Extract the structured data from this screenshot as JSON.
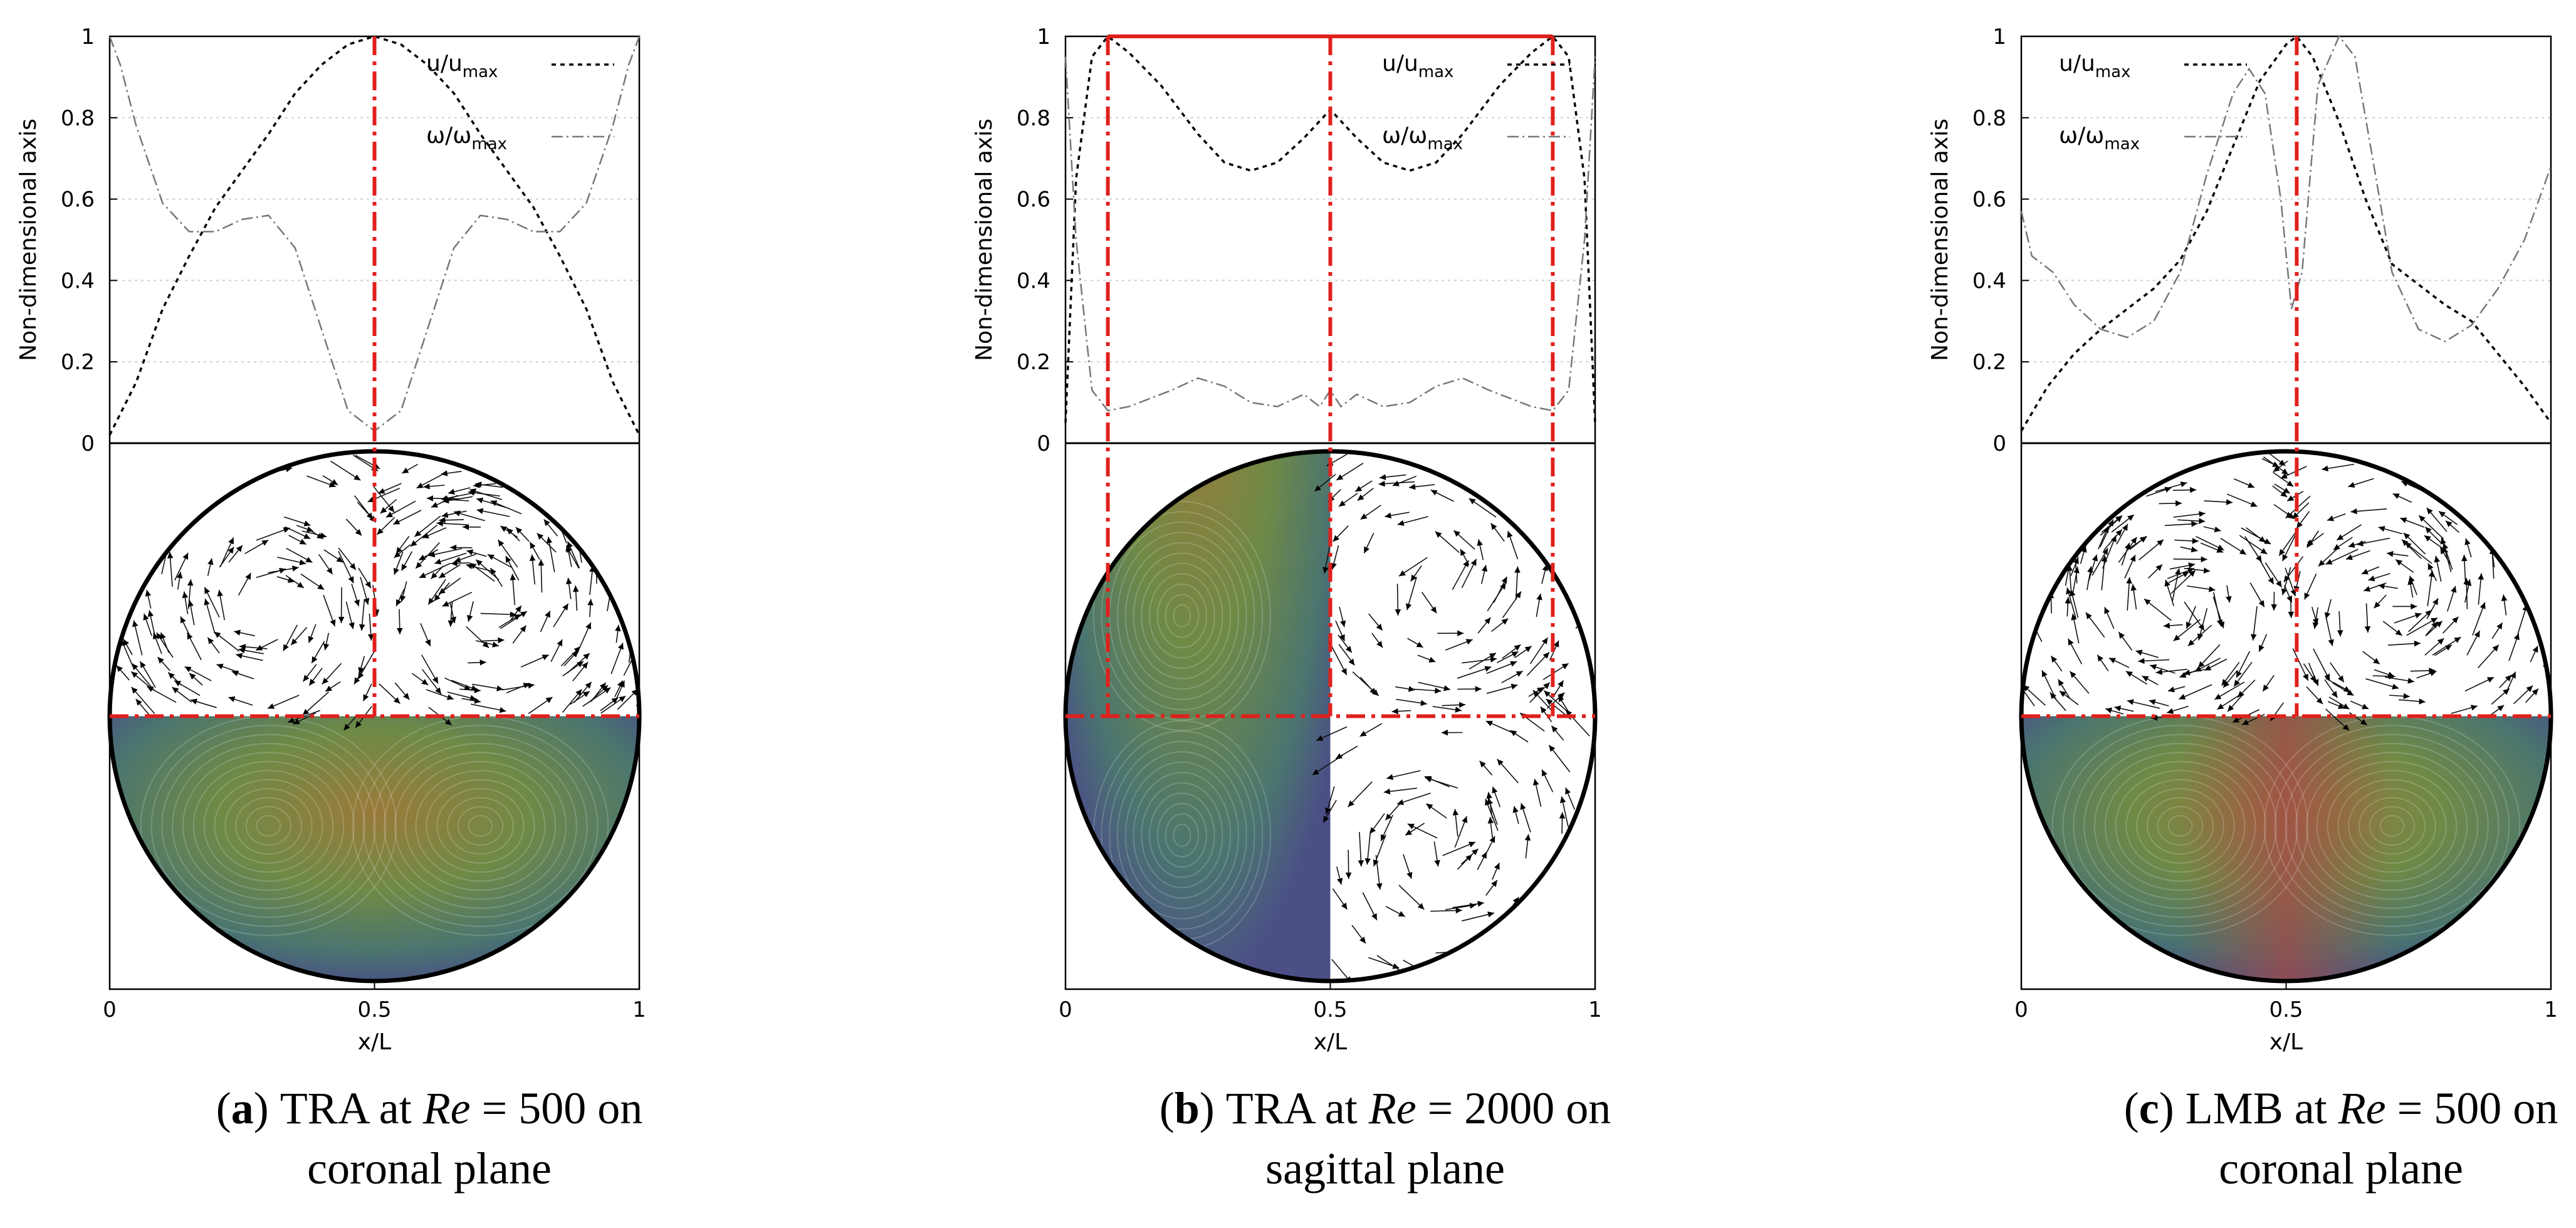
{
  "figure": {
    "panels": [
      {
        "id": "a",
        "letter": "a",
        "caption_pre": "TRA at ",
        "caption_var": "Re",
        "caption_post": " = 500 on",
        "caption_line2": "coronal plane",
        "x_label": "x/L",
        "y_label": "Non-dimensional axis",
        "legend": [
          {
            "base": "u/u",
            "sub": "max"
          },
          {
            "base": "ω/ω",
            "sub": "max"
          }
        ],
        "x_ticks": [
          "0",
          "0.5",
          "1"
        ],
        "y_ticks": [
          "0",
          "0.2",
          "0.4",
          "0.6",
          "0.8",
          "1"
        ],
        "y_zero_label": "0",
        "red_lines_x": [
          0.5
        ],
        "colored_half": "bottom",
        "u_curve": [
          [
            0,
            0.02
          ],
          [
            0.05,
            0.15
          ],
          [
            0.1,
            0.33
          ],
          [
            0.15,
            0.46
          ],
          [
            0.2,
            0.58
          ],
          [
            0.25,
            0.67
          ],
          [
            0.3,
            0.76
          ],
          [
            0.35,
            0.86
          ],
          [
            0.4,
            0.93
          ],
          [
            0.45,
            0.98
          ],
          [
            0.5,
            1.0
          ],
          [
            0.55,
            0.98
          ],
          [
            0.6,
            0.93
          ],
          [
            0.65,
            0.86
          ],
          [
            0.7,
            0.76
          ],
          [
            0.75,
            0.67
          ],
          [
            0.8,
            0.58
          ],
          [
            0.85,
            0.46
          ],
          [
            0.9,
            0.33
          ],
          [
            0.95,
            0.15
          ],
          [
            1.0,
            0.02
          ]
        ],
        "w_curve": [
          [
            0,
            1.0
          ],
          [
            0.02,
            0.93
          ],
          [
            0.05,
            0.78
          ],
          [
            0.1,
            0.59
          ],
          [
            0.15,
            0.52
          ],
          [
            0.2,
            0.52
          ],
          [
            0.25,
            0.55
          ],
          [
            0.3,
            0.56
          ],
          [
            0.35,
            0.48
          ],
          [
            0.4,
            0.28
          ],
          [
            0.45,
            0.08
          ],
          [
            0.5,
            0.03
          ],
          [
            0.55,
            0.08
          ],
          [
            0.6,
            0.28
          ],
          [
            0.65,
            0.48
          ],
          [
            0.7,
            0.56
          ],
          [
            0.75,
            0.55
          ],
          [
            0.8,
            0.52
          ],
          [
            0.85,
            0.52
          ],
          [
            0.9,
            0.59
          ],
          [
            0.95,
            0.78
          ],
          [
            0.98,
            0.93
          ],
          [
            1.0,
            1.0
          ]
        ]
      },
      {
        "id": "b",
        "letter": "b",
        "caption_pre": "TRA at ",
        "caption_var": "Re",
        "caption_post": " = 2000 on",
        "caption_line2": "sagittal plane",
        "x_label": "x/L",
        "y_label": "Non-dimensional axis",
        "legend": [
          {
            "base": "u/u",
            "sub": "max"
          },
          {
            "base": "ω/ω",
            "sub": "max"
          }
        ],
        "x_ticks": [
          "0",
          "0.5",
          "1"
        ],
        "y_ticks": [
          "0",
          "0.2",
          "0.4",
          "0.6",
          "0.8",
          "1"
        ],
        "y_zero_label": "0",
        "red_lines_x": [
          0.08,
          0.5,
          0.92
        ],
        "colored_half": "left",
        "u_curve": [
          [
            0,
            0.05
          ],
          [
            0.02,
            0.65
          ],
          [
            0.05,
            0.95
          ],
          [
            0.08,
            1.0
          ],
          [
            0.12,
            0.96
          ],
          [
            0.18,
            0.88
          ],
          [
            0.25,
            0.76
          ],
          [
            0.3,
            0.69
          ],
          [
            0.35,
            0.67
          ],
          [
            0.4,
            0.69
          ],
          [
            0.45,
            0.75
          ],
          [
            0.5,
            0.82
          ],
          [
            0.55,
            0.75
          ],
          [
            0.6,
            0.69
          ],
          [
            0.65,
            0.67
          ],
          [
            0.7,
            0.69
          ],
          [
            0.75,
            0.76
          ],
          [
            0.82,
            0.88
          ],
          [
            0.88,
            0.96
          ],
          [
            0.92,
            1.0
          ],
          [
            0.95,
            0.95
          ],
          [
            0.98,
            0.65
          ],
          [
            1.0,
            0.05
          ]
        ],
        "w_curve": [
          [
            0,
            0.95
          ],
          [
            0.02,
            0.5
          ],
          [
            0.05,
            0.13
          ],
          [
            0.08,
            0.08
          ],
          [
            0.12,
            0.09
          ],
          [
            0.2,
            0.13
          ],
          [
            0.25,
            0.16
          ],
          [
            0.3,
            0.14
          ],
          [
            0.35,
            0.1
          ],
          [
            0.4,
            0.09
          ],
          [
            0.45,
            0.12
          ],
          [
            0.48,
            0.09
          ],
          [
            0.5,
            0.13
          ],
          [
            0.52,
            0.09
          ],
          [
            0.55,
            0.12
          ],
          [
            0.6,
            0.09
          ],
          [
            0.65,
            0.1
          ],
          [
            0.7,
            0.14
          ],
          [
            0.75,
            0.16
          ],
          [
            0.8,
            0.13
          ],
          [
            0.88,
            0.09
          ],
          [
            0.92,
            0.08
          ],
          [
            0.95,
            0.13
          ],
          [
            0.98,
            0.5
          ],
          [
            1.0,
            0.95
          ]
        ]
      },
      {
        "id": "c",
        "letter": "c",
        "caption_pre": "LMB at ",
        "caption_var": "Re",
        "caption_post": " = 500 on",
        "caption_line2": "coronal plane",
        "x_label": "x/L",
        "y_label": "Non-dimensional axis",
        "legend": [
          {
            "base": "u/u",
            "sub": "max"
          },
          {
            "base": "ω/ω",
            "sub": "max"
          }
        ],
        "x_ticks": [
          "0",
          "0.5",
          "1"
        ],
        "y_ticks": [
          "0",
          "0.2",
          "0.4",
          "0.6",
          "0.8",
          "1"
        ],
        "y_zero_label": "0",
        "red_lines_x": [
          0.52
        ],
        "colored_half": "bottom",
        "u_curve": [
          [
            0,
            0.03
          ],
          [
            0.05,
            0.14
          ],
          [
            0.1,
            0.22
          ],
          [
            0.15,
            0.28
          ],
          [
            0.2,
            0.33
          ],
          [
            0.25,
            0.38
          ],
          [
            0.3,
            0.45
          ],
          [
            0.35,
            0.57
          ],
          [
            0.4,
            0.73
          ],
          [
            0.45,
            0.89
          ],
          [
            0.5,
            0.98
          ],
          [
            0.52,
            1.0
          ],
          [
            0.55,
            0.95
          ],
          [
            0.6,
            0.79
          ],
          [
            0.65,
            0.6
          ],
          [
            0.7,
            0.44
          ],
          [
            0.75,
            0.39
          ],
          [
            0.8,
            0.34
          ],
          [
            0.85,
            0.3
          ],
          [
            0.9,
            0.22
          ],
          [
            0.95,
            0.14
          ],
          [
            1.0,
            0.05
          ]
        ],
        "w_curve": [
          [
            0,
            0.57
          ],
          [
            0.02,
            0.46
          ],
          [
            0.06,
            0.42
          ],
          [
            0.1,
            0.34
          ],
          [
            0.15,
            0.28
          ],
          [
            0.2,
            0.26
          ],
          [
            0.25,
            0.3
          ],
          [
            0.3,
            0.42
          ],
          [
            0.35,
            0.66
          ],
          [
            0.4,
            0.86
          ],
          [
            0.43,
            0.92
          ],
          [
            0.46,
            0.86
          ],
          [
            0.49,
            0.6
          ],
          [
            0.51,
            0.33
          ],
          [
            0.53,
            0.42
          ],
          [
            0.56,
            0.88
          ],
          [
            0.6,
            1.0
          ],
          [
            0.63,
            0.95
          ],
          [
            0.67,
            0.65
          ],
          [
            0.7,
            0.42
          ],
          [
            0.75,
            0.28
          ],
          [
            0.8,
            0.25
          ],
          [
            0.85,
            0.29
          ],
          [
            0.9,
            0.38
          ],
          [
            0.95,
            0.5
          ],
          [
            1.0,
            0.68
          ]
        ]
      }
    ]
  }
}
